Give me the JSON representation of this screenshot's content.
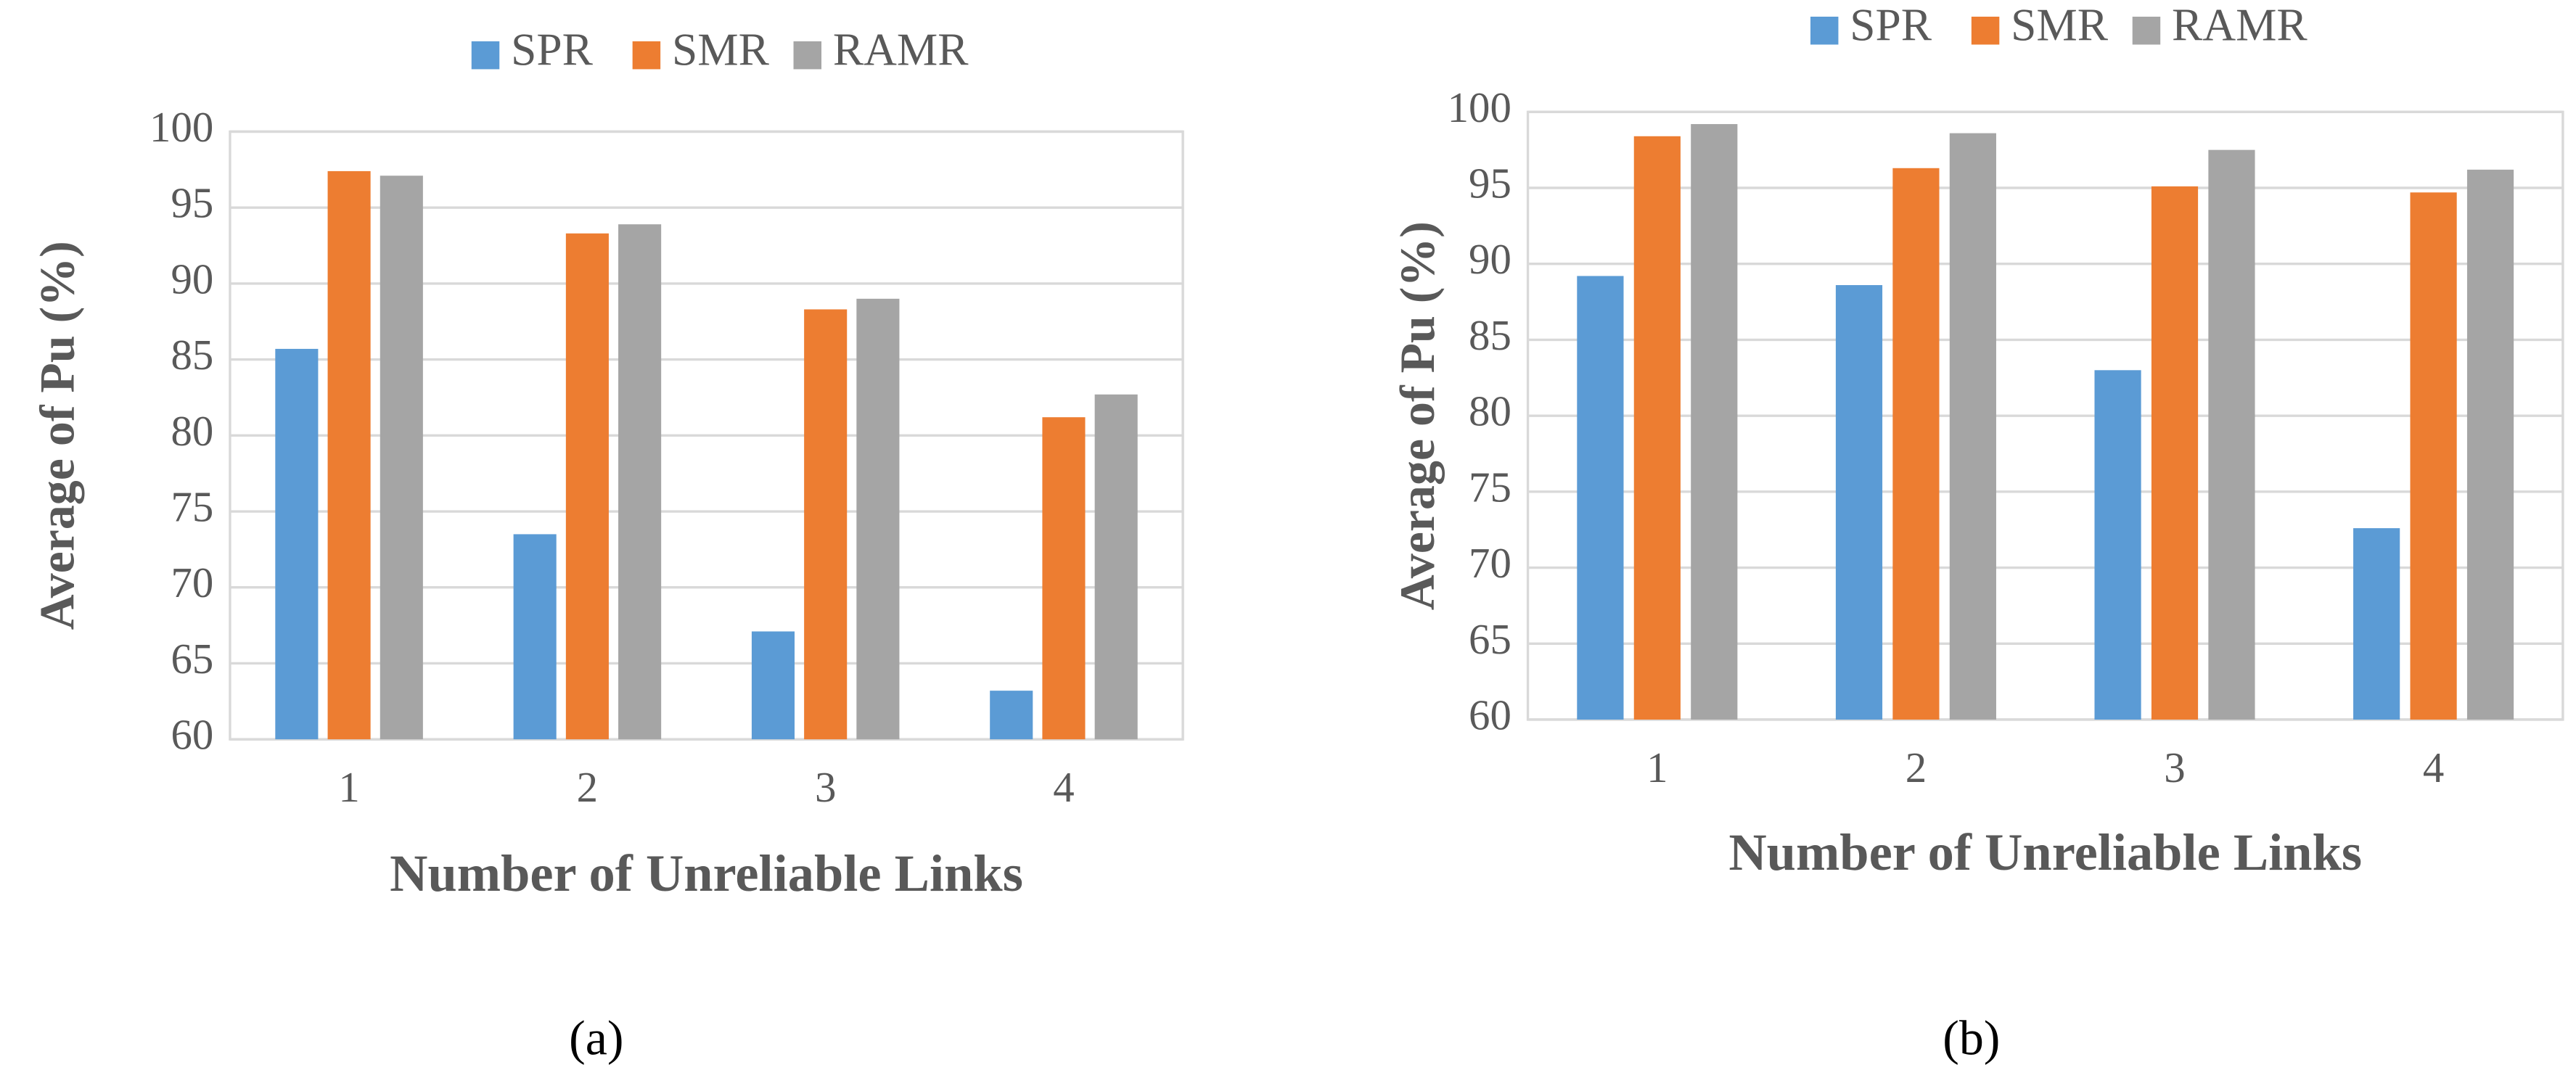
{
  "chart_data": [
    {
      "type": "bar",
      "caption": "(a)",
      "x_label": "Number of Unreliable Links",
      "y_label": "Average of Pu (%)",
      "categories": [
        "1",
        "2",
        "3",
        "4"
      ],
      "series": [
        {
          "name": "SPR",
          "color": "#5b9bd5",
          "values": [
            85.7,
            73.5,
            67.1,
            63.2
          ]
        },
        {
          "name": "SMR",
          "color": "#ed7d31",
          "values": [
            97.4,
            93.3,
            88.3,
            81.2
          ]
        },
        {
          "name": "RAMR",
          "color": "#a5a5a5",
          "values": [
            97.1,
            93.9,
            89.0,
            82.7
          ]
        }
      ],
      "ylim": [
        60,
        100
      ],
      "yticks": [
        60,
        65,
        70,
        75,
        80,
        85,
        90,
        95,
        100
      ],
      "grid": true,
      "legend": "top"
    },
    {
      "type": "bar",
      "caption": "(b)",
      "x_label": "Number of Unreliable Links",
      "y_label": "Average of Pu (%)",
      "categories": [
        "1",
        "2",
        "3",
        "4"
      ],
      "series": [
        {
          "name": "SPR",
          "color": "#5b9bd5",
          "values": [
            89.2,
            88.6,
            83.0,
            72.6
          ]
        },
        {
          "name": "SMR",
          "color": "#ed7d31",
          "values": [
            98.4,
            96.3,
            95.1,
            94.7
          ]
        },
        {
          "name": "RAMR",
          "color": "#a5a5a5",
          "values": [
            99.2,
            98.6,
            97.5,
            96.2
          ]
        }
      ],
      "ylim": [
        60,
        100
      ],
      "yticks": [
        60,
        65,
        70,
        75,
        80,
        85,
        90,
        95,
        100
      ],
      "grid": true,
      "legend": "top"
    }
  ]
}
